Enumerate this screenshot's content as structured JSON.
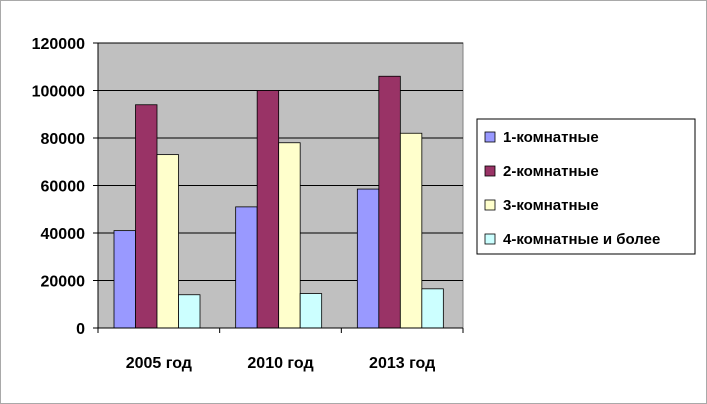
{
  "chart_data": {
    "type": "bar",
    "title": "",
    "xlabel": "",
    "ylabel": "",
    "categories": [
      "2005 год",
      "2010 год",
      "2013 год"
    ],
    "series": [
      {
        "name": "1-комнатные",
        "color": "#9999ff",
        "values": [
          41000,
          51000,
          58500
        ]
      },
      {
        "name": "2-комнатные",
        "color": "#993366",
        "values": [
          94000,
          100000,
          106000
        ]
      },
      {
        "name": "3-комнатные",
        "color": "#ffffcc",
        "values": [
          73000,
          78000,
          82000
        ]
      },
      {
        "name": "4-комнатные и более",
        "color": "#ccffff",
        "values": [
          14000,
          14500,
          16500
        ]
      }
    ],
    "ylim": [
      0,
      120000
    ],
    "y_ticks": [
      "0",
      "20000",
      "40000",
      "60000",
      "80000",
      "100000",
      "120000"
    ],
    "grid": true,
    "plot_background": "#c0c0c0",
    "legend_position": "right"
  }
}
